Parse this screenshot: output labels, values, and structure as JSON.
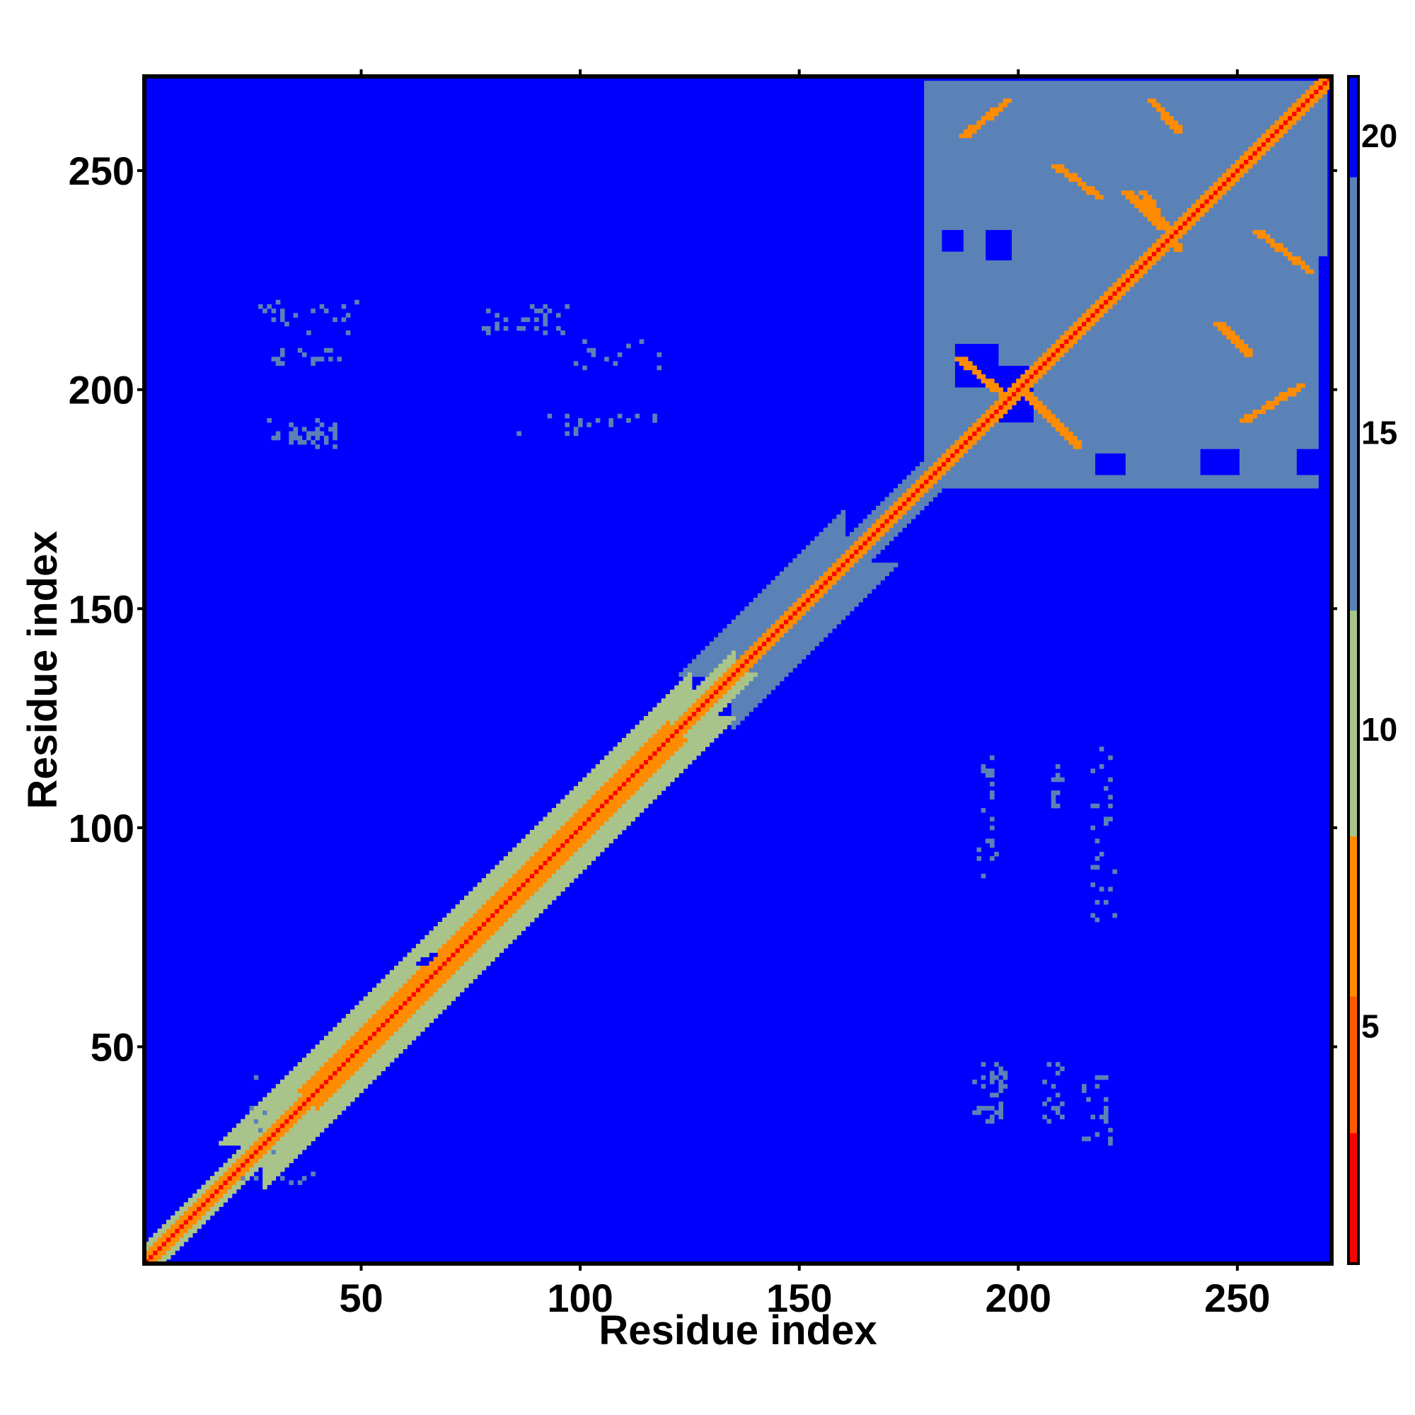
{
  "chart_data": {
    "type": "heatmap",
    "title": "",
    "xlabel": "Residue index",
    "ylabel": "Residue index",
    "xlim": [
      1,
      271
    ],
    "ylim": [
      1,
      271
    ],
    "x_ticks": [
      50,
      100,
      150,
      200,
      250
    ],
    "y_ticks": [
      50,
      100,
      150,
      200,
      250
    ],
    "colorbar": {
      "range": [
        1,
        21
      ],
      "ticks": [
        5,
        10,
        15,
        20
      ],
      "scale_colors": [
        "#ff0000",
        "#ff6600",
        "#ff9900",
        "#a9c48a",
        "#5b82b6",
        "#0000ff"
      ]
    },
    "background_value": 21,
    "colors": {
      "near_contact": "#ff0000",
      "contact": "#ff8c00",
      "medium": "#a9c48a",
      "far": "#5b82b6",
      "background": "#0000ff"
    },
    "regions": [
      {
        "kind": "diagonal",
        "from": 1,
        "to": 271,
        "value": 2
      },
      {
        "kind": "diagonal_band",
        "from": 1,
        "to": 30,
        "half_width": 4,
        "value": 10
      },
      {
        "kind": "diagonal_band",
        "from": 28,
        "to": 125,
        "half_width": 10,
        "value": 12
      },
      {
        "kind": "diagonal_band",
        "from": 40,
        "to": 120,
        "half_width": 4,
        "value": 7
      },
      {
        "kind": "diagonal_band",
        "from": 125,
        "to": 135,
        "half_width": 5,
        "value": 12
      },
      {
        "kind": "diagonal_band",
        "from": 135,
        "to": 160,
        "half_width": 12,
        "value": 13
      },
      {
        "kind": "diagonal_band",
        "from": 160,
        "to": 180,
        "half_width": 5,
        "value": 13
      },
      {
        "kind": "block",
        "x": [
          179,
          270
        ],
        "y": [
          178,
          270
        ],
        "value": 17
      },
      {
        "kind": "block",
        "x": [
          196,
          203
        ],
        "y": [
          193,
          205
        ],
        "value": 21
      },
      {
        "kind": "block",
        "x": [
          186,
          195
        ],
        "y": [
          201,
          210
        ],
        "value": 21
      },
      {
        "kind": "block",
        "x": [
          218,
          224
        ],
        "y": [
          181,
          185
        ],
        "value": 21
      },
      {
        "kind": "block",
        "x": [
          242,
          250
        ],
        "y": [
          181,
          186
        ],
        "value": 21
      },
      {
        "kind": "block",
        "x": [
          264,
          270
        ],
        "y": [
          181,
          186
        ],
        "value": 21
      },
      {
        "kind": "block",
        "x": [
          193,
          198
        ],
        "y": [
          230,
          236
        ],
        "value": 21
      },
      {
        "kind": "block",
        "x": [
          183,
          187
        ],
        "y": [
          232,
          236
        ],
        "value": 21
      },
      {
        "kind": "block",
        "x": [
          269,
          271
        ],
        "y": [
          178,
          230
        ],
        "value": 21
      },
      {
        "kind": "segment",
        "from": [
          201,
          199
        ],
        "to": [
          213,
          187
        ],
        "value": 7
      },
      {
        "kind": "segment",
        "from": [
          186,
          207
        ],
        "to": [
          198,
          197
        ],
        "value": 7
      },
      {
        "kind": "segment",
        "from": [
          187,
          258
        ],
        "to": [
          197,
          266
        ],
        "value": 7
      },
      {
        "kind": "segment",
        "from": [
          230,
          266
        ],
        "to": [
          236,
          259
        ],
        "value": 7
      },
      {
        "kind": "segment",
        "from": [
          208,
          251
        ],
        "to": [
          218,
          244
        ],
        "value": 7
      },
      {
        "kind": "segment",
        "from": [
          224,
          245
        ],
        "to": [
          232,
          237
        ],
        "value": 7
      },
      {
        "kind": "segment",
        "from": [
          245,
          215
        ],
        "to": [
          252,
          208
        ],
        "value": 7
      },
      {
        "kind": "segment",
        "from": [
          254,
          236
        ],
        "to": [
          266,
          227
        ],
        "value": 7
      },
      {
        "kind": "segment",
        "from": [
          251,
          193
        ],
        "to": [
          264,
          201
        ],
        "value": 7
      },
      {
        "kind": "segment",
        "from": [
          228,
          245
        ],
        "to": [
          236,
          232
        ],
        "value": 7
      },
      {
        "kind": "segment",
        "from": [
          66,
          71
        ],
        "to": [
          63,
          69
        ],
        "value": 21
      },
      {
        "kind": "segment",
        "from": [
          60,
          62
        ],
        "to": [
          63,
          64
        ],
        "value": 21
      },
      {
        "kind": "scatter",
        "x": [
          29,
          45
        ],
        "y": [
          187,
          193
        ],
        "n": 40,
        "value": 17
      },
      {
        "kind": "scatter",
        "x": [
          30,
          45
        ],
        "y": [
          206,
          209
        ],
        "n": 18,
        "value": 17
      },
      {
        "kind": "scatter",
        "x": [
          27,
          49
        ],
        "y": [
          213,
          220
        ],
        "n": 22,
        "value": 17
      },
      {
        "kind": "scatter",
        "x": [
          77,
          97
        ],
        "y": [
          213,
          219
        ],
        "n": 30,
        "value": 17
      },
      {
        "kind": "scatter",
        "x": [
          98,
          118
        ],
        "y": [
          205,
          211
        ],
        "n": 14,
        "value": 17
      },
      {
        "kind": "scatter",
        "x": [
          86,
          118
        ],
        "y": [
          190,
          194
        ],
        "n": 18,
        "value": 17
      },
      {
        "kind": "scatter",
        "x": [
          190,
          197
        ],
        "y": [
          33,
          47
        ],
        "n": 40,
        "value": 17
      },
      {
        "kind": "scatter",
        "x": [
          206,
          210
        ],
        "y": [
          33,
          47
        ],
        "n": 16,
        "value": 17
      },
      {
        "kind": "scatter",
        "x": [
          215,
          222
        ],
        "y": [
          28,
          44
        ],
        "n": 20,
        "value": 17
      },
      {
        "kind": "scatter",
        "x": [
          191,
          195
        ],
        "y": [
          88,
          117
        ],
        "n": 24,
        "value": 17
      },
      {
        "kind": "scatter",
        "x": [
          207,
          210
        ],
        "y": [
          103,
          117
        ],
        "n": 12,
        "value": 17
      },
      {
        "kind": "scatter",
        "x": [
          216,
          222
        ],
        "y": [
          78,
          120
        ],
        "n": 28,
        "value": 17
      },
      {
        "kind": "scatter",
        "x": [
          18,
          30
        ],
        "y": [
          19,
          43
        ],
        "n": 10,
        "value": 17
      },
      {
        "kind": "scatter",
        "x": [
          32,
          41
        ],
        "y": [
          18,
          21
        ],
        "n": 6,
        "value": 17
      }
    ]
  }
}
